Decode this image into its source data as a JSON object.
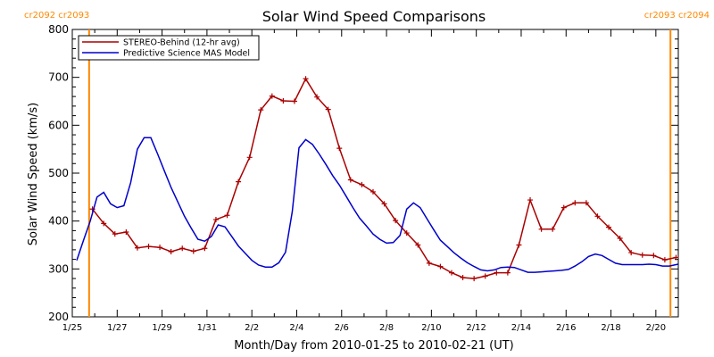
{
  "chart_data": {
    "type": "line",
    "title": "Solar Wind Speed Comparisons",
    "xlabel": "Month/Day from 2010-01-25 to 2010-02-21 (UT)",
    "ylabel": "Solar Wind Speed (km/s)",
    "ylim": [
      200,
      800
    ],
    "xlim": [
      0,
      27
    ],
    "yticks": [
      200,
      300,
      400,
      500,
      600,
      700,
      800
    ],
    "xticks": [
      {
        "day": 0,
        "label": "1/25"
      },
      {
        "day": 2,
        "label": "1/27"
      },
      {
        "day": 4,
        "label": "1/29"
      },
      {
        "day": 6,
        "label": "1/31"
      },
      {
        "day": 8,
        "label": "2/2"
      },
      {
        "day": 10,
        "label": "2/4"
      },
      {
        "day": 12,
        "label": "2/6"
      },
      {
        "day": 14,
        "label": "2/8"
      },
      {
        "day": 16,
        "label": "2/10"
      },
      {
        "day": 18,
        "label": "2/12"
      },
      {
        "day": 20,
        "label": "2/14"
      },
      {
        "day": 22,
        "label": "2/16"
      },
      {
        "day": 24,
        "label": "2/18"
      },
      {
        "day": 26,
        "label": "2/20"
      }
    ],
    "carrington_markers": [
      {
        "day": 0.75,
        "labels": [
          "cr2092",
          "cr2093"
        ],
        "side": "left"
      },
      {
        "day": 26.65,
        "labels": [
          "cr2093",
          "cr2094"
        ],
        "side": "right"
      }
    ],
    "legend_position": "top-left",
    "series": [
      {
        "name": "STEREO-Behind (12-hr avg)",
        "color": "#aa0000",
        "markers": true,
        "x": [
          0.9,
          1.4,
          1.9,
          2.4,
          2.9,
          3.4,
          3.9,
          4.4,
          4.9,
          5.4,
          5.9,
          6.4,
          6.9,
          7.4,
          7.9,
          8.4,
          8.9,
          9.4,
          9.9,
          10.4,
          10.9,
          11.4,
          11.9,
          12.4,
          12.9,
          13.4,
          13.9,
          14.4,
          14.9,
          15.4,
          15.9,
          16.4,
          16.9,
          17.4,
          17.9,
          18.4,
          18.9,
          19.4,
          19.9,
          20.4,
          20.9,
          21.4,
          21.9,
          22.4,
          22.9,
          23.4,
          23.9,
          24.4,
          24.9,
          25.4,
          25.9,
          26.4,
          26.9
        ],
        "y": [
          425,
          395,
          373,
          377,
          344,
          347,
          345,
          336,
          343,
          337,
          343,
          403,
          412,
          482,
          533,
          632,
          661,
          651,
          650,
          697,
          659,
          633,
          552,
          486,
          476,
          461,
          436,
          401,
          375,
          350,
          312,
          305,
          292,
          282,
          280,
          285,
          292,
          292,
          350,
          444,
          383,
          383,
          428,
          438,
          438,
          410,
          387,
          364,
          334,
          329,
          328,
          319,
          324
        ]
      },
      {
        "name": "Predictive Science MAS Model",
        "color": "#0000cc",
        "markers": false,
        "x": [
          0.2,
          0.5,
          0.8,
          1.1,
          1.4,
          1.7,
          2.0,
          2.3,
          2.6,
          2.9,
          3.2,
          3.5,
          3.8,
          4.1,
          4.4,
          4.7,
          5.0,
          5.3,
          5.6,
          5.9,
          6.2,
          6.5,
          6.8,
          7.1,
          7.4,
          7.7,
          8.0,
          8.3,
          8.6,
          8.9,
          9.2,
          9.5,
          9.8,
          10.1,
          10.4,
          10.7,
          11.0,
          11.3,
          11.6,
          11.9,
          12.2,
          12.5,
          12.8,
          13.1,
          13.4,
          13.7,
          14.0,
          14.3,
          14.6,
          14.9,
          15.2,
          15.5,
          15.8,
          16.1,
          16.4,
          16.7,
          17.0,
          17.3,
          17.6,
          17.9,
          18.2,
          18.5,
          18.8,
          19.1,
          19.4,
          19.7,
          20.0,
          20.3,
          20.6,
          20.9,
          21.2,
          21.5,
          21.8,
          22.1,
          22.4,
          22.7,
          23.0,
          23.3,
          23.6,
          23.9,
          24.2,
          24.5,
          24.8,
          25.1,
          25.4,
          25.7,
          26.0,
          26.3,
          26.6,
          26.9,
          27.0
        ],
        "y": [
          318,
          360,
          400,
          450,
          460,
          436,
          428,
          432,
          480,
          550,
          574,
          574,
          540,
          505,
          470,
          440,
          410,
          385,
          362,
          358,
          368,
          392,
          388,
          368,
          348,
          333,
          318,
          308,
          304,
          304,
          313,
          335,
          420,
          553,
          570,
          560,
          540,
          518,
          495,
          475,
          452,
          428,
          406,
          390,
          373,
          362,
          354,
          355,
          370,
          425,
          438,
          428,
          405,
          382,
          360,
          347,
          334,
          323,
          313,
          305,
          298,
          296,
          298,
          303,
          304,
          303,
          298,
          293,
          293,
          294,
          295,
          296,
          297,
          299,
          306,
          315,
          326,
          331,
          328,
          320,
          312,
          309,
          309,
          309,
          309,
          310,
          309,
          306,
          306,
          309,
          310
        ]
      }
    ]
  }
}
